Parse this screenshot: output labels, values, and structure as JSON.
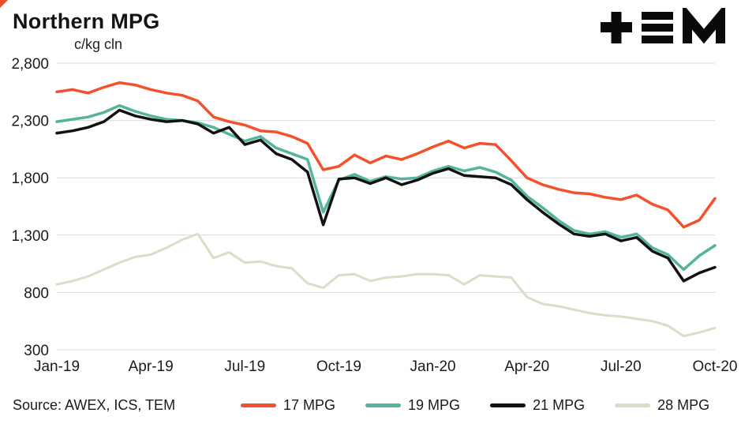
{
  "header": {
    "title": "Northern MPG",
    "unit_label": "c/kg cln",
    "logo_name": "TEM"
  },
  "footer": {
    "source": "Source: AWEX, ICS, TEM"
  },
  "chart_data": {
    "type": "line",
    "title": "Northern MPG",
    "ylabel": "c/kg cln",
    "xlabel": "",
    "grid": "horizontal",
    "legend_position": "bottom",
    "ylim": [
      300,
      2800
    ],
    "yticks": [
      300,
      800,
      1300,
      1800,
      2300,
      2800
    ],
    "ytick_labels": [
      "300",
      "800",
      "1,300",
      "1,800",
      "2,300",
      "2,800"
    ],
    "x_range": [
      0,
      21
    ],
    "x_step_months": 0.5,
    "xtick_positions": [
      0,
      3,
      6,
      9,
      12,
      15,
      18,
      21
    ],
    "xtick_labels": [
      "Jan-19",
      "Apr-19",
      "Jul-19",
      "Oct-19",
      "Jan-20",
      "Apr-20",
      "Jul-20",
      "Oct-20"
    ],
    "colors": {
      "grid": "#d9d9d9",
      "axis_text": "#1c1c1c"
    },
    "series": [
      {
        "name": "17 MPG",
        "color": "#f4502e",
        "values": [
          2550,
          2570,
          2540,
          2590,
          2630,
          2610,
          2570,
          2540,
          2520,
          2470,
          2330,
          2290,
          2260,
          2210,
          2200,
          2160,
          2100,
          1870,
          1900,
          2000,
          1930,
          1990,
          1960,
          2010,
          2070,
          2120,
          2060,
          2100,
          2090,
          1950,
          1800,
          1740,
          1700,
          1670,
          1660,
          1630,
          1610,
          1650,
          1570,
          1520,
          1370,
          1430,
          1620
        ]
      },
      {
        "name": "19 MPG",
        "color": "#55b49d",
        "values": [
          2290,
          2310,
          2330,
          2370,
          2430,
          2380,
          2340,
          2310,
          2300,
          2280,
          2240,
          2180,
          2120,
          2160,
          2060,
          2010,
          1960,
          1500,
          1780,
          1830,
          1770,
          1810,
          1790,
          1800,
          1860,
          1900,
          1860,
          1890,
          1850,
          1780,
          1640,
          1540,
          1430,
          1340,
          1310,
          1330,
          1280,
          1310,
          1190,
          1130,
          1000,
          1120,
          1210
        ]
      },
      {
        "name": "21 MPG",
        "color": "#121212",
        "values": [
          2190,
          2210,
          2240,
          2290,
          2390,
          2340,
          2310,
          2290,
          2300,
          2270,
          2190,
          2240,
          2090,
          2130,
          2010,
          1960,
          1850,
          1390,
          1790,
          1800,
          1750,
          1800,
          1740,
          1780,
          1840,
          1880,
          1820,
          1810,
          1800,
          1740,
          1610,
          1500,
          1400,
          1310,
          1290,
          1310,
          1250,
          1280,
          1160,
          1100,
          900,
          970,
          1020
        ]
      },
      {
        "name": "28 MPG",
        "color": "#dcdcc8",
        "values": [
          870,
          900,
          940,
          1000,
          1060,
          1110,
          1130,
          1190,
          1260,
          1310,
          1100,
          1150,
          1060,
          1070,
          1030,
          1010,
          880,
          840,
          950,
          960,
          900,
          930,
          940,
          960,
          960,
          950,
          870,
          950,
          940,
          930,
          760,
          700,
          680,
          650,
          620,
          600,
          590,
          570,
          550,
          510,
          420,
          450,
          490
        ]
      }
    ]
  }
}
